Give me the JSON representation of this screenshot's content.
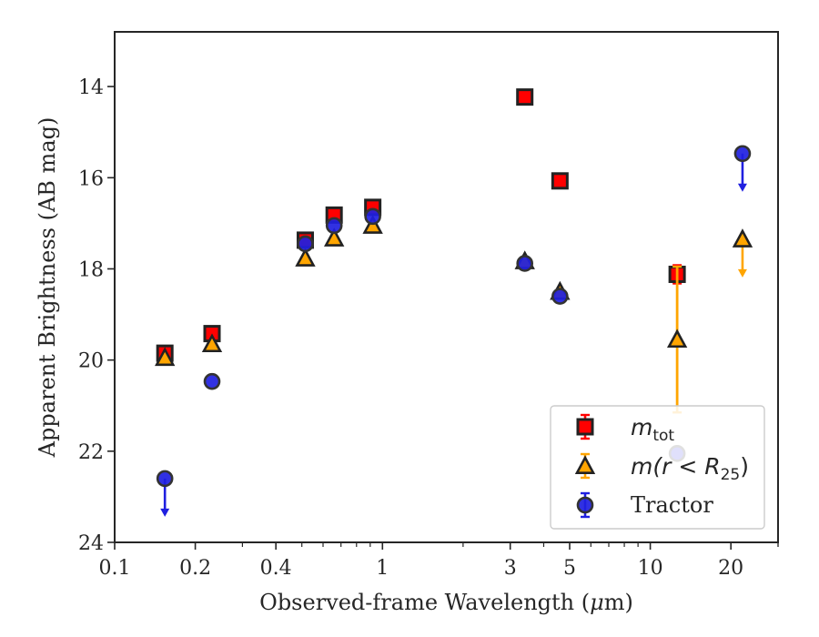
{
  "chart_data": {
    "type": "scatter",
    "title": "",
    "xlabel": "Observed-frame Wavelength (μm)",
    "xlabel_prefix": "Observed-frame Wavelength (",
    "xlabel_unit_greek": "μ",
    "xlabel_unit_rest": "m)",
    "ylabel": "Apparent Brightness (AB mag)",
    "x_scale": "log",
    "xlim": [
      0.1,
      30
    ],
    "ylim": [
      24,
      12.8
    ],
    "y_inverted": true,
    "x_ticks": [
      {
        "value": 0.1,
        "label": "0.1"
      },
      {
        "value": 0.2,
        "label": "0.2"
      },
      {
        "value": 0.4,
        "label": "0.4"
      },
      {
        "value": 1,
        "label": "1"
      },
      {
        "value": 3,
        "label": "3"
      },
      {
        "value": 5,
        "label": "5"
      },
      {
        "value": 10,
        "label": "10"
      },
      {
        "value": 20,
        "label": "20"
      }
    ],
    "y_ticks": [
      {
        "value": 14,
        "label": "14"
      },
      {
        "value": 16,
        "label": "16"
      },
      {
        "value": 18,
        "label": "18"
      },
      {
        "value": 20,
        "label": "20"
      },
      {
        "value": 22,
        "label": "22"
      },
      {
        "value": 24,
        "label": "24"
      }
    ],
    "grid": false,
    "legend_position": "lower-right",
    "series": [
      {
        "name": "m_tot",
        "legend_main": "m",
        "legend_sub": "tot",
        "marker": "square",
        "fill": "#ff0000",
        "edge": "#222222",
        "errcolor": "#ff0000",
        "points": [
          {
            "x": 0.154,
            "y": 19.85
          },
          {
            "x": 0.231,
            "y": 19.42
          },
          {
            "x": 0.515,
            "y": 17.37
          },
          {
            "x": 0.66,
            "y": 16.82
          },
          {
            "x": 0.92,
            "y": 16.65
          },
          {
            "x": 3.4,
            "y": 14.23
          },
          {
            "x": 4.6,
            "y": 16.07
          },
          {
            "x": 12.6,
            "y": 18.12,
            "yerr": 0.2
          }
        ]
      },
      {
        "name": "m(r < R25)",
        "legend_main": "m(r < R",
        "legend_sub": "25",
        "legend_end": ")",
        "marker": "triangle",
        "fill": "#ffa500",
        "edge": "#222222",
        "errcolor": "#ffa500",
        "points": [
          {
            "x": 0.154,
            "y": 19.95
          },
          {
            "x": 0.231,
            "y": 19.65
          },
          {
            "x": 0.515,
            "y": 17.77
          },
          {
            "x": 0.66,
            "y": 17.33
          },
          {
            "x": 0.92,
            "y": 17.05
          },
          {
            "x": 3.4,
            "y": 17.83
          },
          {
            "x": 4.6,
            "y": 18.5
          },
          {
            "x": 12.6,
            "y": 19.55,
            "yerr": 1.6
          },
          {
            "x": 22.1,
            "y": 17.35,
            "upper_limit": true
          }
        ]
      },
      {
        "name": "Tractor",
        "marker": "circle",
        "fill": "#1f1fe0",
        "edge": "#333333",
        "errcolor": "#1f1fe0",
        "points": [
          {
            "x": 0.154,
            "y": 22.6,
            "upper_limit": true
          },
          {
            "x": 0.231,
            "y": 20.47
          },
          {
            "x": 0.515,
            "y": 17.45
          },
          {
            "x": 0.66,
            "y": 17.05
          },
          {
            "x": 0.92,
            "y": 16.85
          },
          {
            "x": 3.4,
            "y": 17.88
          },
          {
            "x": 4.6,
            "y": 18.6
          },
          {
            "x": 12.6,
            "y": 22.05
          },
          {
            "x": 22.1,
            "y": 15.47,
            "upper_limit": true
          }
        ]
      }
    ]
  }
}
